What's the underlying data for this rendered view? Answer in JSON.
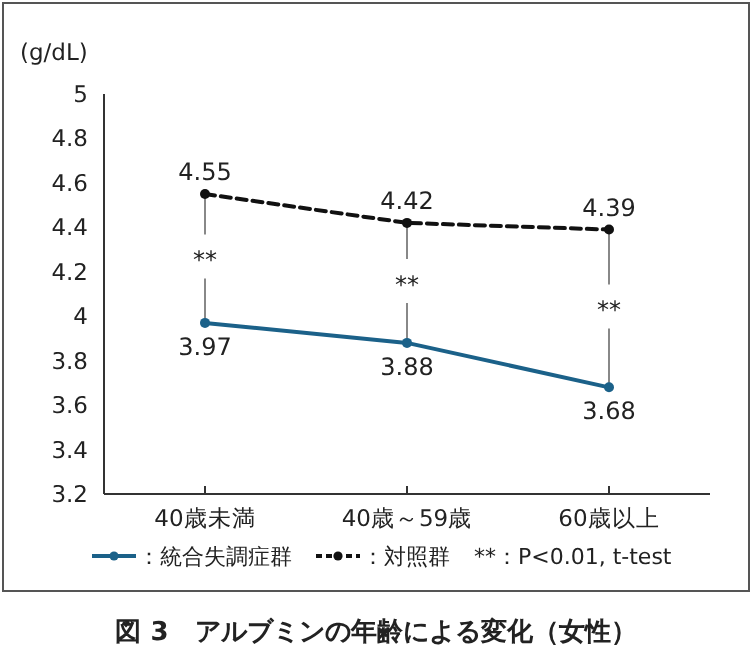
{
  "chart_data": {
    "type": "line",
    "title": "図 3　アルブミンの年齢による変化（女性）",
    "ylabel": "(g/dL)",
    "categories": [
      "40歳未満",
      "40歳～59歳",
      "60歳以上"
    ],
    "series": [
      {
        "name": "：統合失調症群",
        "color": "#1b6189",
        "values": [
          3.97,
          3.88,
          3.68
        ],
        "line_style": "solid"
      },
      {
        "name": "：対照群",
        "color": "#111111",
        "values": [
          4.55,
          4.42,
          4.39
        ],
        "line_style": "dashed"
      }
    ],
    "ylim": [
      3.2,
      5
    ],
    "yticks": [
      3.2,
      3.4,
      3.6,
      3.8,
      4,
      4.2,
      4.4,
      4.6,
      4.8,
      5
    ],
    "marker": "circle",
    "data_labels": true,
    "legend": "bottom",
    "grid": false,
    "annotations": [
      {
        "text": "**",
        "x": "40歳未満",
        "y": 3.97
      },
      {
        "text": "**",
        "x": "40歳～59歳",
        "y": 3.88
      },
      {
        "text": "**",
        "x": "60歳以上",
        "y": 3.68
      },
      "**：P<0.01, t-test"
    ]
  }
}
